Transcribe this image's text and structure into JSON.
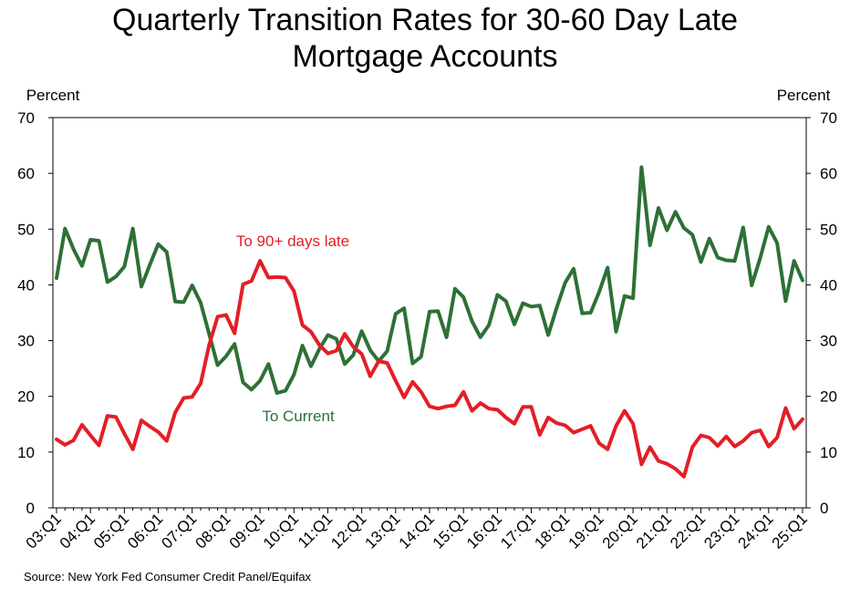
{
  "chart_data": {
    "type": "line",
    "title_lines": [
      "Quarterly Transition Rates for 30-60 Day Late",
      "Mortgage Accounts"
    ],
    "left_unit": "Percent",
    "right_unit": "Percent",
    "ylim": [
      0,
      70
    ],
    "yticks": [
      0,
      10,
      20,
      30,
      40,
      50,
      60,
      70
    ],
    "xlabels": [
      "03:Q1",
      "04:Q1",
      "05:Q1",
      "06:Q1",
      "07:Q1",
      "08:Q1",
      "09:Q1",
      "10:Q1",
      "11:Q1",
      "12:Q1",
      "13:Q1",
      "14:Q1",
      "15:Q1",
      "16:Q1",
      "17:Q1",
      "18:Q1",
      "19:Q1",
      "20:Q1",
      "21:Q1",
      "22:Q1",
      "23:Q1",
      "24:Q1",
      "25:Q1"
    ],
    "grid": false,
    "series": [
      {
        "name": "To Current",
        "color": "#2e7036",
        "values": [
          41.2,
          50.1,
          46.4,
          43.4,
          48.1,
          47.9,
          40.5,
          41.5,
          43.3,
          50.1,
          39.7,
          43.6,
          47.3,
          45.9,
          37.0,
          36.9,
          39.9,
          36.8,
          31.2,
          25.6,
          27.2,
          29.4,
          22.5,
          21.2,
          22.8,
          25.8,
          20.6,
          21.0,
          23.9,
          29.1,
          25.4,
          28.5,
          31.0,
          30.3,
          25.8,
          27.4,
          31.7,
          28.3,
          26.3,
          28.1,
          34.8,
          35.8,
          25.9,
          27.1,
          35.2,
          35.3,
          30.6,
          39.3,
          37.8,
          33.5,
          30.6,
          32.8,
          38.2,
          37.1,
          32.9,
          36.7,
          36.1,
          36.3,
          31.0,
          35.9,
          40.4,
          42.9,
          34.9,
          35.0,
          38.7,
          43.1,
          31.6,
          38.0,
          37.6,
          61.1,
          47.1,
          53.8,
          49.8,
          53.1,
          50.2,
          49.0,
          44.1,
          48.3,
          44.9,
          44.4,
          44.3,
          50.3,
          39.9,
          44.8,
          50.4,
          47.5,
          37.1,
          44.3,
          40.8
        ]
      },
      {
        "name": "To 90+ days late",
        "color": "#e31e26",
        "values": [
          12.3,
          11.3,
          12.1,
          14.9,
          13.0,
          11.2,
          16.5,
          16.3,
          13.3,
          10.5,
          15.7,
          14.6,
          13.6,
          12.0,
          17.1,
          19.7,
          19.9,
          22.3,
          29.2,
          34.3,
          34.6,
          31.3,
          40.1,
          40.7,
          44.3,
          41.3,
          41.4,
          41.3,
          38.9,
          32.8,
          31.6,
          29.2,
          27.7,
          28.2,
          31.2,
          28.9,
          27.6,
          23.6,
          26.3,
          26.0,
          22.8,
          19.8,
          22.6,
          20.8,
          18.2,
          17.8,
          18.2,
          18.4,
          20.8,
          17.4,
          18.8,
          17.8,
          17.6,
          16.2,
          15.1,
          18.1,
          18.1,
          13.1,
          16.2,
          15.2,
          14.8,
          13.5,
          14.1,
          14.7,
          11.6,
          10.5,
          14.7,
          17.4,
          15.1,
          7.8,
          10.9,
          8.4,
          7.9,
          7.0,
          5.6,
          10.9,
          13.0,
          12.6,
          11.1,
          12.8,
          11.0,
          12.0,
          13.5,
          13.9,
          11.0,
          12.6,
          17.9,
          14.2,
          15.9
        ]
      }
    ],
    "annotations": {
      "to_current": "To Current",
      "to_90_days": "To 90+ days late"
    },
    "source": "Source: New York Fed Consumer Credit Panel/Equifax"
  }
}
